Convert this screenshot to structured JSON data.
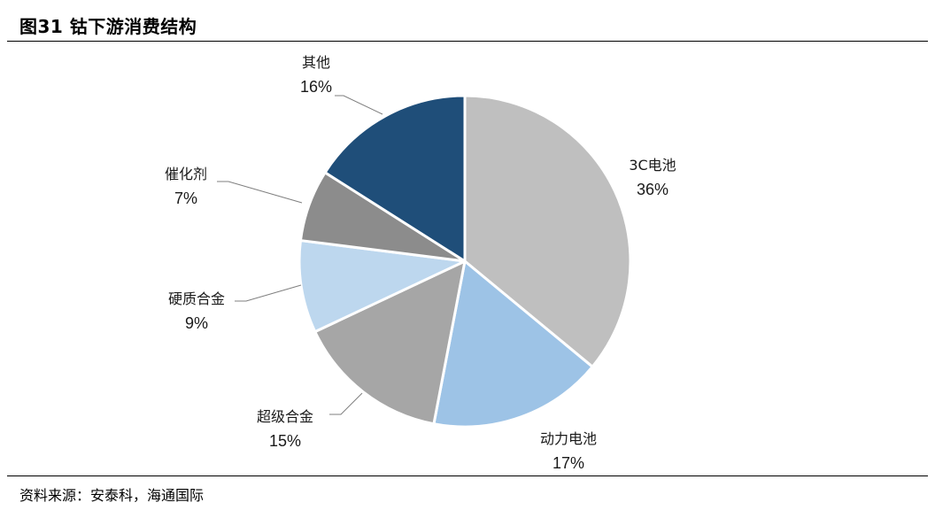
{
  "figure": {
    "title": "图31 钴下游消费结构",
    "source": "资料来源：安泰科，海通国际"
  },
  "chart_data": {
    "type": "pie",
    "title": "",
    "slices": [
      {
        "label": "3C电池",
        "value": 36,
        "pct_label": "36%",
        "color": "#bfbfbf"
      },
      {
        "label": "动力电池",
        "value": 17,
        "pct_label": "17%",
        "color": "#9dc3e6"
      },
      {
        "label": "超级合金",
        "value": 15,
        "pct_label": "15%",
        "color": "#a6a6a6"
      },
      {
        "label": "硬质合金",
        "value": 9,
        "pct_label": "9%",
        "color": "#bdd7ee"
      },
      {
        "label": "催化剂",
        "value": 7,
        "pct_label": "7%",
        "color": "#8c8c8c"
      },
      {
        "label": "其他",
        "value": 16,
        "pct_label": "16%",
        "color": "#1f4e79"
      }
    ],
    "start": "12 o'clock",
    "direction": "clockwise",
    "legend": "none",
    "leader_line_color": "#7f7f7f"
  }
}
